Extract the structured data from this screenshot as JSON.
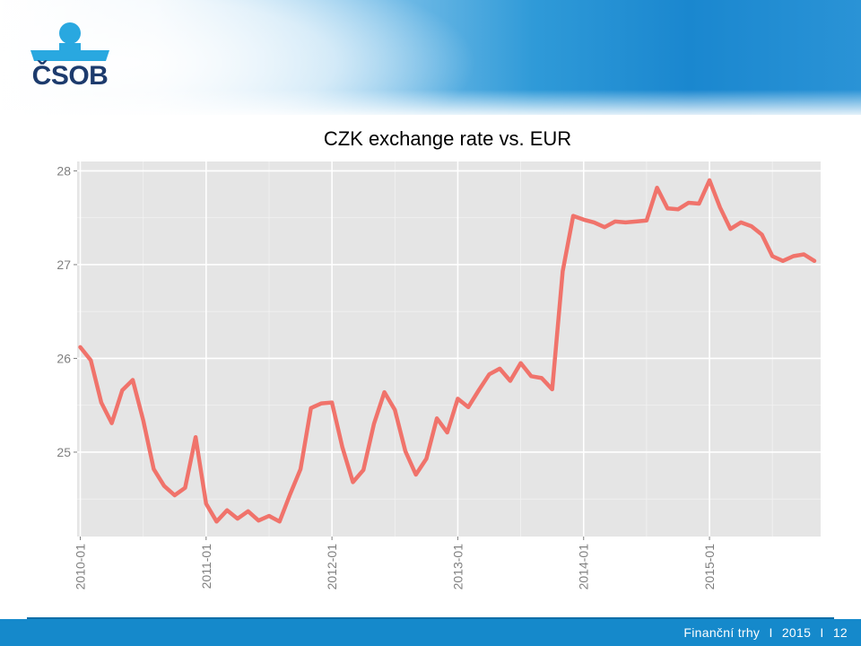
{
  "brand": {
    "logo_text": "ČSOB",
    "colors": {
      "logo_blue": "#1d3b6d",
      "logo_light": "#29a8e0",
      "footer_blue": "#1589cb"
    }
  },
  "footer": {
    "section": "Finanční trhy",
    "sep1": "I",
    "year": "2015",
    "sep2": "I",
    "page": "12"
  },
  "chart_data": {
    "type": "line",
    "title": "CZK exchange rate vs. EUR",
    "xlabel": "",
    "ylabel": "",
    "x_ticks": [
      "2010-01",
      "2011-01",
      "2012-01",
      "2013-01",
      "2014-01",
      "2015-01"
    ],
    "y_ticks": [
      25,
      26,
      27,
      28
    ],
    "ylim": [
      24.1,
      28.1
    ],
    "grid": true,
    "legend": "none",
    "series": [
      {
        "color": "#f0736b",
        "x": [
          "2010-01",
          "2010-02",
          "2010-03",
          "2010-04",
          "2010-05",
          "2010-06",
          "2010-07",
          "2010-08",
          "2010-09",
          "2010-10",
          "2010-11",
          "2010-12",
          "2011-01",
          "2011-02",
          "2011-03",
          "2011-04",
          "2011-05",
          "2011-06",
          "2011-07",
          "2011-08",
          "2011-09",
          "2011-10",
          "2011-11",
          "2011-12",
          "2012-01",
          "2012-02",
          "2012-03",
          "2012-04",
          "2012-05",
          "2012-06",
          "2012-07",
          "2012-08",
          "2012-09",
          "2012-10",
          "2012-11",
          "2012-12",
          "2013-01",
          "2013-02",
          "2013-03",
          "2013-04",
          "2013-05",
          "2013-06",
          "2013-07",
          "2013-08",
          "2013-09",
          "2013-10",
          "2013-11",
          "2013-12",
          "2014-01",
          "2014-02",
          "2014-03",
          "2014-04",
          "2014-05",
          "2014-06",
          "2014-07",
          "2014-08",
          "2014-09",
          "2014-10",
          "2014-11",
          "2014-12",
          "2015-01",
          "2015-02",
          "2015-03",
          "2015-04",
          "2015-05",
          "2015-06",
          "2015-07",
          "2015-08",
          "2015-09",
          "2015-10",
          "2015-11"
        ],
        "values": [
          26.12,
          25.98,
          25.53,
          25.31,
          25.66,
          25.77,
          25.34,
          24.82,
          24.64,
          24.54,
          24.62,
          25.16,
          24.45,
          24.26,
          24.38,
          24.29,
          24.37,
          24.27,
          24.32,
          24.26,
          24.55,
          24.82,
          25.47,
          25.52,
          25.53,
          25.05,
          24.68,
          24.81,
          25.3,
          25.64,
          25.45,
          25.01,
          24.76,
          24.93,
          25.36,
          25.21,
          25.57,
          25.48,
          25.66,
          25.83,
          25.89,
          25.76,
          25.95,
          25.81,
          25.79,
          25.67,
          26.93,
          27.52,
          27.48,
          27.45,
          27.4,
          27.46,
          27.45,
          27.46,
          27.47,
          27.82,
          27.6,
          27.59,
          27.66,
          27.65,
          27.9,
          27.61,
          27.38,
          27.45,
          27.41,
          27.32,
          27.09,
          27.04,
          27.09,
          27.11,
          27.04
        ]
      }
    ]
  }
}
